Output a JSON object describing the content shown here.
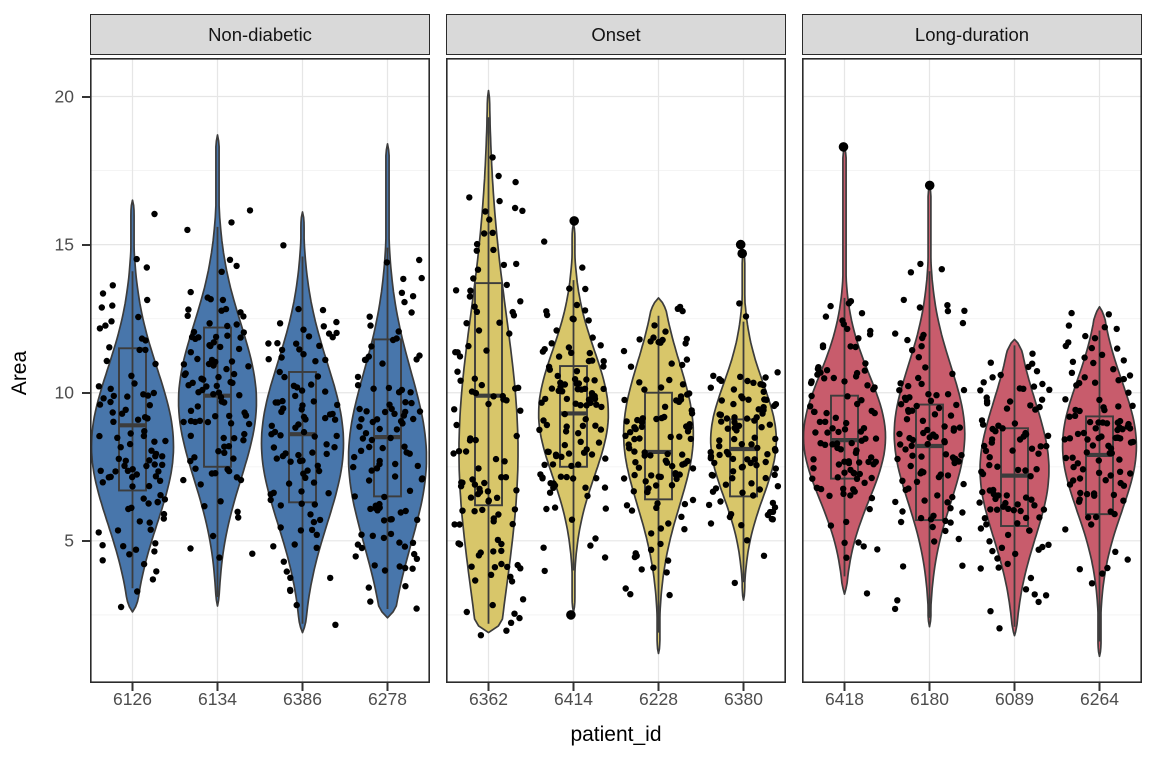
{
  "chart_data": {
    "type": "violin",
    "title": "",
    "xlabel": "patient_id",
    "ylabel": "Area",
    "y_axis": {
      "ticks": [
        20,
        15,
        10,
        5
      ],
      "minor_gridlines": [
        17.5,
        12.5,
        7.5,
        2.5
      ],
      "range": [
        0.2,
        21.3
      ]
    },
    "x_axis": {
      "label": "patient_id"
    },
    "grid": "major and minor horizontal, major vertical at categories",
    "legend": "none",
    "style": {
      "violin_outline": "#3c3c3c",
      "box_outline": "#3c3c3c",
      "point_color": "#000000",
      "grid_major": "#e6e6e6",
      "grid_minor": "#f3f3f3",
      "panel_border": "#2b2b2b",
      "strip_bg": "#d9d9d9",
      "tick_color": "#333333",
      "tick_label_color": "#4d4d4d",
      "fill_non_diabetic": "#4876ab",
      "fill_onset": "#d8c66a",
      "fill_long_duration": "#c85c6c"
    },
    "facets": [
      {
        "label": "Non-diabetic",
        "fill": "#4876ab",
        "patients": [
          {
            "id": "6126",
            "n_points": 100,
            "violin_min": 2.6,
            "violin_max": 16.5,
            "whisker_low": 3.4,
            "q1": 6.7,
            "median": 8.9,
            "q3": 11.5,
            "whisker_high": 14.1,
            "mode": 8.2,
            "spread": 2.6,
            "width": 1.0,
            "outliers": []
          },
          {
            "id": "6134",
            "n_points": 105,
            "violin_min": 2.8,
            "violin_max": 18.7,
            "whisker_low": 3.1,
            "q1": 7.5,
            "median": 9.9,
            "q3": 12.2,
            "whisker_high": 15.6,
            "mode": 9.7,
            "spread": 2.6,
            "width": 0.95,
            "outliers": []
          },
          {
            "id": "6386",
            "n_points": 100,
            "violin_min": 1.9,
            "violin_max": 16.1,
            "whisker_low": 2.2,
            "q1": 6.3,
            "median": 8.6,
            "q3": 10.7,
            "whisker_high": 14.6,
            "mode": 8.3,
            "spread": 2.7,
            "width": 1.0,
            "outliers": []
          },
          {
            "id": "6278",
            "n_points": 105,
            "violin_min": 2.4,
            "violin_max": 18.4,
            "whisker_low": 2.7,
            "q1": 6.5,
            "median": 8.5,
            "q3": 11.8,
            "whisker_high": 14.9,
            "mode": 7.8,
            "spread": 2.9,
            "width": 0.95,
            "outliers": []
          }
        ]
      },
      {
        "label": "Onset",
        "fill": "#d8c66a",
        "patients": [
          {
            "id": "6362",
            "n_points": 115,
            "violin_min": 1.9,
            "violin_max": 20.2,
            "whisker_low": 2.2,
            "q1": 6.2,
            "median": 9.9,
            "q3": 13.7,
            "whisker_high": 19.3,
            "mode": 8.0,
            "spread": 4.6,
            "width": 0.72,
            "outliers": []
          },
          {
            "id": "6414",
            "n_points": 110,
            "violin_min": 2.6,
            "violin_max": 15.7,
            "whisker_low": 4.0,
            "q1": 7.5,
            "median": 9.3,
            "q3": 10.9,
            "whisker_high": 13.8,
            "mode": 9.3,
            "spread": 2.1,
            "width": 0.85,
            "outliers": [
              15.8,
              2.5
            ]
          },
          {
            "id": "6228",
            "n_points": 110,
            "violin_min": 1.2,
            "violin_max": 13.2,
            "whisker_low": 1.9,
            "q1": 6.4,
            "median": 8.0,
            "q3": 10.0,
            "whisker_high": 12.6,
            "mode": 8.6,
            "spread": 2.4,
            "width": 0.85,
            "outliers": []
          },
          {
            "id": "6380",
            "n_points": 100,
            "violin_min": 3.0,
            "violin_max": 14.8,
            "whisker_low": 3.6,
            "q1": 6.5,
            "median": 8.1,
            "q3": 9.1,
            "whisker_high": 12.4,
            "mode": 8.4,
            "spread": 1.9,
            "width": 0.8,
            "bulk_max": 13.0,
            "outliers": [
              14.7,
              15.0
            ]
          }
        ]
      },
      {
        "label": "Long-duration",
        "fill": "#c85c6c",
        "patients": [
          {
            "id": "6418",
            "n_points": 105,
            "violin_min": 3.2,
            "violin_max": 18.3,
            "whisker_low": 3.8,
            "q1": 7.1,
            "median": 8.4,
            "q3": 9.9,
            "whisker_high": 13.2,
            "mode": 8.5,
            "spread": 2.1,
            "width": 1.0,
            "bulk_max": 14.2,
            "outliers": [
              18.3
            ]
          },
          {
            "id": "6180",
            "n_points": 105,
            "violin_min": 2.1,
            "violin_max": 17.0,
            "whisker_low": 2.4,
            "q1": 5.7,
            "median": 8.2,
            "q3": 9.6,
            "whisker_high": 14.1,
            "mode": 8.6,
            "spread": 2.3,
            "width": 0.86,
            "bulk_max": 14.6,
            "outliers": [
              17.0
            ]
          },
          {
            "id": "6089",
            "n_points": 100,
            "violin_min": 1.8,
            "violin_max": 11.8,
            "whisker_low": 2.1,
            "q1": 5.5,
            "median": 7.2,
            "q3": 8.8,
            "whisker_high": 11.6,
            "mode": 7.4,
            "spread": 2.3,
            "width": 0.84,
            "outliers": []
          },
          {
            "id": "6264",
            "n_points": 105,
            "violin_min": 1.1,
            "violin_max": 12.9,
            "whisker_low": 1.6,
            "q1": 5.9,
            "median": 7.9,
            "q3": 9.2,
            "whisker_high": 12.1,
            "mode": 8.2,
            "spread": 2.2,
            "width": 0.9,
            "outliers": []
          }
        ]
      }
    ]
  }
}
